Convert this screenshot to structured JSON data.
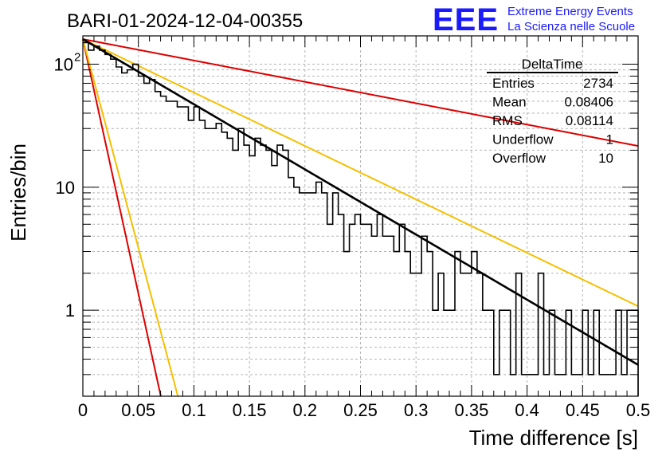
{
  "colors": {
    "histogram": "#000000",
    "fit": "#000000",
    "red_lines": "#dd0000",
    "yellow_lines": "#f5c000",
    "logo_blue": "#1a1aff",
    "grid": "#b4b4b4"
  },
  "chart_data": {
    "type": "histogram",
    "title": "BARI-01-2024-12-04-00355",
    "xlabel": "Time difference [s]",
    "ylabel": "Entries/bin",
    "xlim": [
      0,
      0.5
    ],
    "ylim": [
      0.2,
      170
    ],
    "yscale": "log",
    "grid": true,
    "xticks": [
      {
        "v": 0,
        "label": "0"
      },
      {
        "v": 0.05,
        "label": "0.05"
      },
      {
        "v": 0.1,
        "label": "0.1"
      },
      {
        "v": 0.15,
        "label": "0.15"
      },
      {
        "v": 0.2,
        "label": "0.2"
      },
      {
        "v": 0.25,
        "label": "0.25"
      },
      {
        "v": 0.3,
        "label": "0.3"
      },
      {
        "v": 0.35,
        "label": "0.35"
      },
      {
        "v": 0.4,
        "label": "0.4"
      },
      {
        "v": 0.45,
        "label": "0.45"
      },
      {
        "v": 0.5,
        "label": "0.5"
      }
    ],
    "yticks": [
      {
        "v": 1,
        "label": "1",
        "exp": ""
      },
      {
        "v": 10,
        "label": "10",
        "exp": ""
      },
      {
        "v": 100,
        "label": "10",
        "exp": "2"
      }
    ],
    "bin_width": 0.005,
    "bin_counts": [
      150,
      130,
      140,
      130,
      120,
      110,
      95,
      85,
      90,
      100,
      80,
      70,
      75,
      60,
      55,
      50,
      50,
      45,
      45,
      35,
      45,
      35,
      30,
      30,
      33,
      28,
      25,
      20,
      30,
      22,
      18,
      25,
      22,
      20,
      15,
      22,
      20,
      12,
      10,
      9,
      9,
      9,
      11,
      9,
      5,
      9,
      6,
      3,
      5,
      6,
      5,
      5,
      4,
      6,
      4,
      4,
      3,
      5,
      3,
      2,
      2,
      4,
      3,
      1,
      2,
      1,
      1,
      3,
      2,
      2,
      3,
      2,
      1,
      1,
      0.3,
      1,
      1,
      0.3,
      2,
      0.3,
      0.3,
      0.3,
      2,
      0.3,
      1,
      0.3,
      0.3,
      1,
      0.3,
      0.3,
      1,
      0.3,
      1,
      0.3,
      0.3,
      0.3,
      1,
      0.3,
      1,
      1
    ],
    "series": [
      {
        "name": "exponential fit",
        "style": "black-thick",
        "a": 160,
        "tau": 0.082
      },
      {
        "name": "reference",
        "style": "red",
        "a": 160,
        "tau": 0.25
      },
      {
        "name": "reference",
        "style": "yellow",
        "a": 160,
        "tau": 0.1
      },
      {
        "name": "reference",
        "style": "red",
        "a": 160,
        "tau": 0.0105
      },
      {
        "name": "reference",
        "style": "yellow",
        "a": 160,
        "tau": 0.0128
      }
    ],
    "stats_box": {
      "title": "DeltaTime",
      "rows": [
        {
          "label": "Entries",
          "value": "2734"
        },
        {
          "label": "Mean",
          "value": "0.08406"
        },
        {
          "label": "RMS",
          "value": "0.08114"
        },
        {
          "label": "Underflow",
          "value": "1"
        },
        {
          "label": "Overflow",
          "value": "10"
        }
      ]
    }
  },
  "logo": {
    "mark": "EEE",
    "line1": "Extreme Energy Events",
    "line2": "La Scienza nelle Scuole"
  }
}
